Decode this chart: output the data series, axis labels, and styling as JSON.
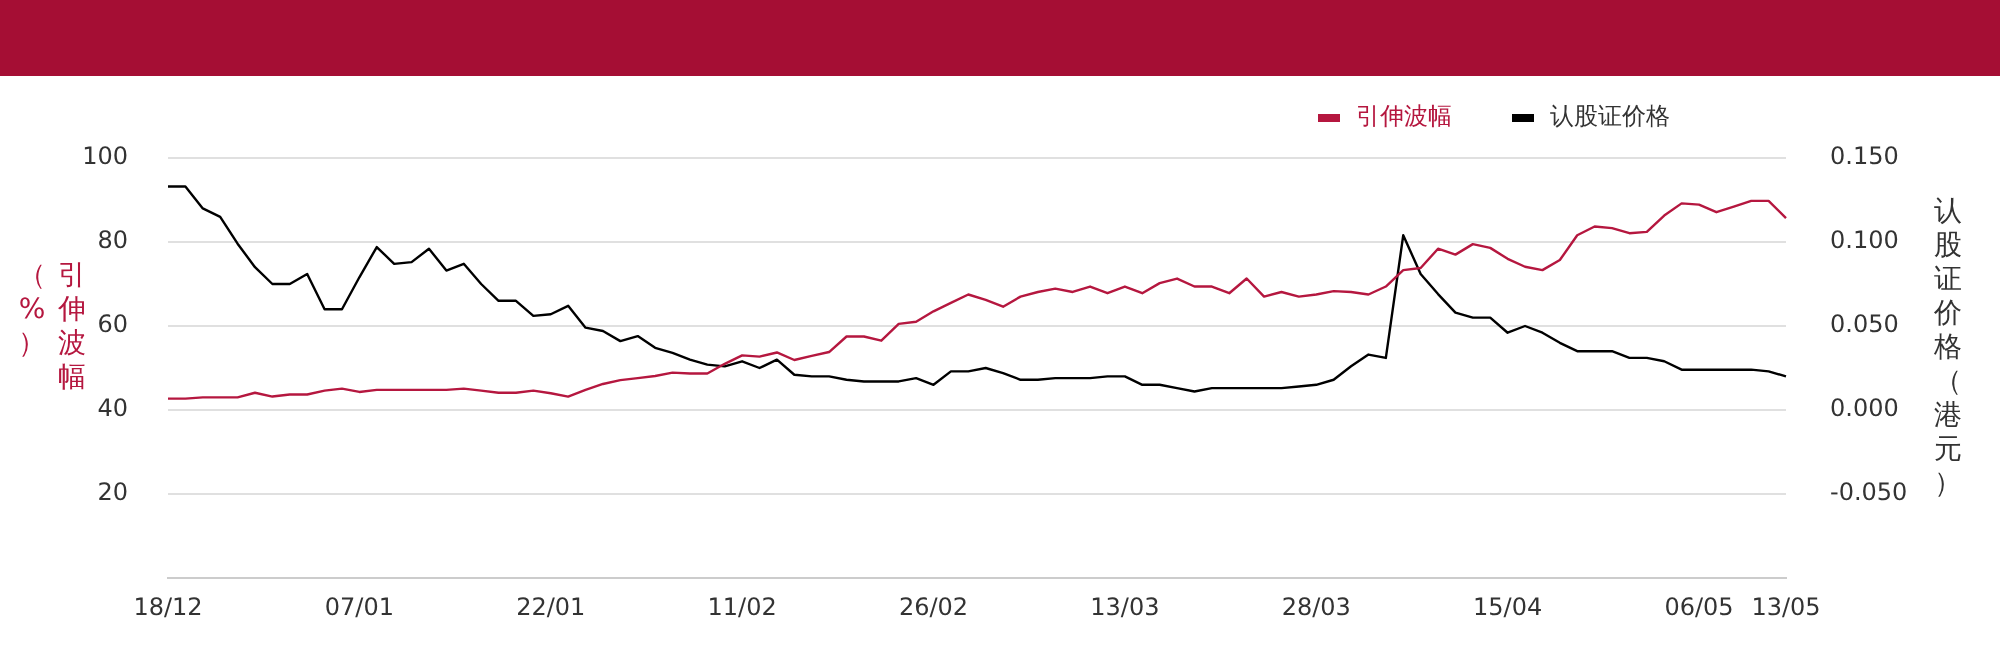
{
  "chart_data": {
    "type": "line",
    "ylabel": "引伸波幅（%）",
    "y2label": "认股证价格（港元）",
    "categories": [
      "18/12",
      null,
      null,
      null,
      null,
      null,
      null,
      null,
      null,
      null,
      null,
      "07/01",
      null,
      null,
      null,
      null,
      null,
      null,
      null,
      null,
      null,
      null,
      "22/01",
      null,
      null,
      null,
      null,
      null,
      null,
      null,
      null,
      null,
      null,
      "11/02",
      null,
      null,
      null,
      null,
      null,
      null,
      null,
      null,
      null,
      null,
      "26/02",
      null,
      null,
      null,
      null,
      null,
      null,
      null,
      null,
      null,
      null,
      "13/03",
      null,
      null,
      null,
      null,
      null,
      null,
      null,
      null,
      null,
      null,
      "28/03",
      null,
      null,
      null,
      null,
      null,
      null,
      null,
      null,
      null,
      null,
      "15/04",
      null,
      null,
      null,
      null,
      null,
      null,
      null,
      null,
      null,
      null,
      "06/05",
      null,
      null,
      null,
      null,
      "13/05"
    ],
    "series": [
      {
        "name": "引伸波幅",
        "color": "#b5173f",
        "values": [
          42.7,
          42.7,
          43.0,
          43.0,
          43.0,
          44.1,
          43.2,
          43.7,
          43.7,
          44.6,
          45.1,
          44.3,
          44.8,
          44.8,
          44.8,
          44.8,
          44.8,
          45.1,
          44.6,
          44.1,
          44.1,
          44.6,
          44.0,
          43.2,
          44.8,
          46.2,
          47.1,
          47.6,
          48.1,
          48.9,
          48.7,
          48.7,
          51.0,
          53.0,
          52.7,
          53.7,
          51.9,
          52.9,
          53.8,
          57.5,
          57.5,
          56.5,
          60.5,
          61.0,
          63.5,
          65.5,
          67.5,
          66.2,
          64.6,
          67.0,
          68.1,
          68.9,
          68.1,
          69.4,
          67.8,
          69.4,
          67.8,
          70.2,
          71.3,
          69.4,
          69.4,
          67.8,
          71.3,
          67.0,
          68.1,
          67.0,
          67.5,
          68.3,
          68.1,
          67.5,
          69.4,
          73.3,
          73.8,
          78.4,
          77.0,
          79.5,
          78.6,
          76.0,
          74.1,
          73.3,
          75.7,
          81.6,
          83.7,
          83.3,
          82.1,
          82.4,
          86.3,
          89.2,
          88.9,
          87.1,
          88.4,
          89.8,
          89.8,
          85.7
        ]
      },
      {
        "name": "认股证价格",
        "color": "#000000",
        "axis": "y2",
        "values": [
          0.133,
          0.133,
          0.12,
          0.115,
          0.099,
          0.085,
          0.075,
          0.075,
          0.081,
          0.06,
          0.06,
          0.079,
          0.097,
          0.087,
          0.088,
          0.096,
          0.083,
          0.087,
          0.075,
          0.065,
          0.065,
          0.056,
          0.057,
          0.062,
          0.049,
          0.047,
          0.041,
          0.044,
          0.037,
          0.034,
          0.03,
          0.027,
          0.026,
          0.029,
          0.025,
          0.03,
          0.021,
          0.02,
          0.02,
          0.018,
          0.017,
          0.017,
          0.017,
          0.019,
          0.015,
          0.023,
          0.023,
          0.025,
          0.022,
          0.018,
          0.018,
          0.019,
          0.019,
          0.019,
          0.02,
          0.02,
          0.015,
          0.015,
          0.013,
          0.011,
          0.013,
          0.013,
          0.013,
          0.013,
          0.013,
          0.014,
          0.015,
          0.018,
          0.026,
          0.033,
          0.031,
          0.104,
          0.081,
          0.069,
          0.058,
          0.055,
          0.055,
          0.046,
          0.05,
          0.046,
          0.04,
          0.035,
          0.035,
          0.035,
          0.031,
          0.031,
          0.029,
          0.024,
          0.024,
          0.024,
          0.024,
          0.024,
          0.023,
          0.02
        ]
      }
    ],
    "ylim": [
      0,
      100
    ],
    "yticks": [
      20,
      40,
      60,
      80,
      100
    ],
    "y2lim": [
      -0.1,
      0.15
    ],
    "y2ticks": [
      {
        "value": -0.05,
        "label": "-0.050"
      },
      {
        "value": 0,
        "label": "0.000"
      },
      {
        "value": 0.05,
        "label": "0.050"
      },
      {
        "value": 0.1,
        "label": "0.100"
      },
      {
        "value": 0.15,
        "label": "0.150"
      }
    ],
    "grid": "y",
    "legend": "top right",
    "marker": "none",
    "line_style": "solid"
  }
}
